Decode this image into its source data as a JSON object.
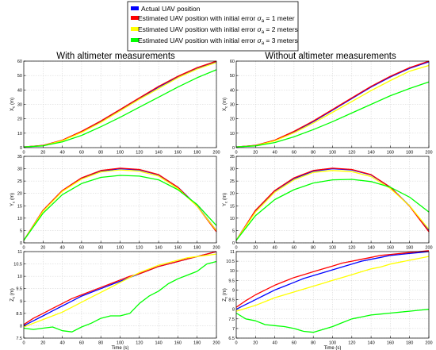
{
  "legend": {
    "entries": [
      {
        "prefix": "Actual UAV position",
        "sigma": "",
        "suffix": "",
        "color": "#0000ff"
      },
      {
        "prefix": "Estimated UAV position with initial error ",
        "sigma": "a",
        "suffix": " = 1 meter",
        "color": "#ff0000"
      },
      {
        "prefix": "Estimated UAV position with initial error ",
        "sigma": "a",
        "suffix": " = 2 meters",
        "color": "#ffff00"
      },
      {
        "prefix": "Estimated UAV position with initial error ",
        "sigma": "a",
        "suffix": " = 3 meters",
        "color": "#00ff00"
      }
    ]
  },
  "columns": [
    {
      "title": "With altimeter measurements"
    },
    {
      "title": "Without altimeter measurements"
    }
  ],
  "chart_data": [
    {
      "type": "line",
      "col": 0,
      "row": 0,
      "ylabel": "X_c (m)",
      "xlabel": "",
      "xlim": [
        0,
        200
      ],
      "ylim": [
        0,
        60
      ],
      "xticks": [
        0,
        20,
        40,
        60,
        80,
        100,
        120,
        140,
        160,
        180,
        200
      ],
      "yticks": [
        0,
        10,
        20,
        30,
        40,
        50,
        60
      ],
      "grid": true,
      "x": [
        0,
        20,
        40,
        60,
        80,
        100,
        120,
        140,
        160,
        180,
        200
      ],
      "series": [
        {
          "color": "#0000ff",
          "values": [
            0.5,
            1.5,
            5,
            11,
            18,
            26,
            34,
            42,
            49,
            55,
            59.5
          ]
        },
        {
          "color": "#ff0000",
          "values": [
            0.5,
            1.6,
            5.2,
            11.3,
            18.5,
            26.5,
            34.5,
            42.5,
            49.5,
            55.5,
            60
          ]
        },
        {
          "color": "#ffff00",
          "values": [
            0.5,
            1.4,
            4.8,
            10.5,
            17.5,
            25.5,
            33.5,
            41,
            48.5,
            54.5,
            59
          ]
        },
        {
          "color": "#00ff00",
          "values": [
            0.5,
            1.2,
            4,
            8.5,
            14.5,
            21,
            28,
            35,
            42,
            48.5,
            54
          ]
        }
      ]
    },
    {
      "type": "line",
      "col": 1,
      "row": 0,
      "ylabel": "X_c (m)",
      "xlabel": "",
      "xlim": [
        0,
        200
      ],
      "ylim": [
        0,
        60
      ],
      "xticks": [
        0,
        20,
        40,
        60,
        80,
        100,
        120,
        140,
        160,
        180,
        200
      ],
      "yticks": [
        0,
        10,
        20,
        30,
        40,
        50,
        60
      ],
      "grid": true,
      "x": [
        0,
        20,
        40,
        60,
        80,
        100,
        120,
        140,
        160,
        180,
        200
      ],
      "series": [
        {
          "color": "#0000ff",
          "values": [
            0.5,
            1.5,
            5,
            11,
            18,
            26,
            34,
            42,
            49,
            55,
            59.5
          ]
        },
        {
          "color": "#ff0000",
          "values": [
            0.5,
            1.6,
            5.2,
            11.3,
            18.5,
            26.5,
            34.5,
            42.5,
            49.5,
            55.5,
            60
          ]
        },
        {
          "color": "#ffff00",
          "values": [
            0.5,
            1.4,
            4.7,
            10.3,
            17,
            24.5,
            32,
            39.5,
            46.5,
            53,
            57
          ]
        },
        {
          "color": "#00ff00",
          "values": [
            0.5,
            1.2,
            3.5,
            7.5,
            12.5,
            18,
            24,
            30,
            36,
            41,
            45.5
          ]
        }
      ]
    },
    {
      "type": "line",
      "col": 0,
      "row": 1,
      "ylabel": "Y_c (m)",
      "xlabel": "",
      "xlim": [
        0,
        200
      ],
      "ylim": [
        0,
        35
      ],
      "xticks": [
        0,
        20,
        40,
        60,
        80,
        100,
        120,
        140,
        160,
        180,
        200
      ],
      "yticks": [
        0,
        5,
        10,
        15,
        20,
        25,
        30,
        35
      ],
      "grid": true,
      "x": [
        0,
        20,
        40,
        60,
        80,
        100,
        120,
        140,
        160,
        180,
        200
      ],
      "series": [
        {
          "color": "#0000ff",
          "values": [
            1,
            13,
            21,
            26,
            29,
            30,
            29.5,
            27.5,
            22.5,
            15,
            5
          ]
        },
        {
          "color": "#ff0000",
          "values": [
            1,
            13.2,
            21.2,
            26.3,
            29.3,
            30.2,
            29.7,
            27.6,
            22.5,
            14.8,
            4.5
          ]
        },
        {
          "color": "#ffff00",
          "values": [
            1,
            12.8,
            20.8,
            25.8,
            28.7,
            29.5,
            29,
            27,
            22,
            14.8,
            5
          ]
        },
        {
          "color": "#00ff00",
          "values": [
            1,
            12,
            19.5,
            24,
            26.5,
            27.3,
            27,
            25.5,
            21.5,
            15.5,
            7
          ]
        }
      ]
    },
    {
      "type": "line",
      "col": 1,
      "row": 1,
      "ylabel": "Y_c (m)",
      "xlabel": "",
      "xlim": [
        0,
        200
      ],
      "ylim": [
        0,
        35
      ],
      "xticks": [
        0,
        20,
        40,
        60,
        80,
        100,
        120,
        140,
        160,
        180,
        200
      ],
      "yticks": [
        0,
        5,
        10,
        15,
        20,
        25,
        30,
        35
      ],
      "grid": true,
      "x": [
        0,
        20,
        40,
        60,
        80,
        100,
        120,
        140,
        160,
        180,
        200
      ],
      "series": [
        {
          "color": "#0000ff",
          "values": [
            1,
            13,
            21,
            26,
            29,
            30,
            29.5,
            27.5,
            22.5,
            15,
            5
          ]
        },
        {
          "color": "#ff0000",
          "values": [
            1,
            13.2,
            21.2,
            26.3,
            29.3,
            30.2,
            29.7,
            27.6,
            22.5,
            14.8,
            4.5
          ]
        },
        {
          "color": "#ffff00",
          "values": [
            1,
            12.5,
            20.5,
            25.5,
            28.5,
            29.3,
            28.8,
            26.8,
            22,
            15,
            5.5
          ]
        },
        {
          "color": "#00ff00",
          "values": [
            1,
            11,
            17.5,
            21.5,
            24.2,
            25.5,
            25.7,
            24.8,
            22.5,
            18.5,
            12.5
          ]
        }
      ]
    },
    {
      "type": "line",
      "col": 0,
      "row": 2,
      "ylabel": "Z_c (m)",
      "xlabel": "Time (s)",
      "xlim": [
        0,
        200
      ],
      "ylim": [
        7.5,
        11
      ],
      "xticks": [
        0,
        20,
        40,
        60,
        80,
        100,
        120,
        140,
        160,
        180,
        200
      ],
      "yticks": [
        7.5,
        8,
        8.5,
        9,
        9.5,
        10,
        10.5,
        11
      ],
      "grid": true,
      "x": [
        0,
        10,
        20,
        30,
        40,
        50,
        60,
        70,
        80,
        90,
        100,
        110,
        120,
        130,
        140,
        150,
        160,
        170,
        180,
        190,
        200
      ],
      "series": [
        {
          "color": "#0000ff",
          "values": [
            8,
            8.2,
            8.4,
            8.6,
            8.8,
            9,
            9.2,
            9.35,
            9.5,
            9.65,
            9.8,
            9.95,
            10.1,
            10.25,
            10.4,
            10.5,
            10.6,
            10.7,
            10.8,
            10.9,
            11
          ]
        },
        {
          "color": "#ff0000",
          "values": [
            8.05,
            8.3,
            8.5,
            8.7,
            8.9,
            9.1,
            9.25,
            9.4,
            9.55,
            9.7,
            9.85,
            10,
            10.1,
            10.25,
            10.4,
            10.5,
            10.6,
            10.7,
            10.8,
            10.9,
            11
          ]
        },
        {
          "color": "#ffff00",
          "values": [
            7.95,
            8.1,
            8.25,
            8.4,
            8.55,
            8.75,
            8.95,
            9.15,
            9.35,
            9.55,
            9.75,
            9.95,
            10.15,
            10.3,
            10.45,
            10.55,
            10.65,
            10.75,
            10.8,
            10.85,
            10.9
          ]
        },
        {
          "color": "#00ff00",
          "values": [
            7.9,
            7.85,
            7.9,
            7.95,
            7.8,
            7.75,
            7.95,
            8.1,
            8.3,
            8.4,
            8.4,
            8.5,
            8.9,
            9.2,
            9.4,
            9.7,
            9.9,
            10.05,
            10.2,
            10.5,
            10.6
          ]
        }
      ]
    },
    {
      "type": "line",
      "col": 1,
      "row": 2,
      "ylabel": "Z_c (m)",
      "xlabel": "Time (s)",
      "xlim": [
        0,
        200
      ],
      "ylim": [
        6.5,
        11
      ],
      "xticks": [
        0,
        20,
        40,
        60,
        80,
        100,
        120,
        140,
        160,
        180,
        200
      ],
      "yticks": [
        6.5,
        7,
        7.5,
        8,
        8.5,
        9,
        9.5,
        10,
        10.5,
        11
      ],
      "grid": true,
      "x": [
        0,
        10,
        20,
        30,
        40,
        50,
        60,
        70,
        80,
        90,
        100,
        110,
        120,
        130,
        140,
        150,
        160,
        170,
        180,
        190,
        200
      ],
      "series": [
        {
          "color": "#0000ff",
          "values": [
            8,
            8.25,
            8.5,
            8.75,
            9,
            9.2,
            9.4,
            9.6,
            9.75,
            9.9,
            10.05,
            10.2,
            10.35,
            10.5,
            10.6,
            10.7,
            10.8,
            10.85,
            10.9,
            10.95,
            11
          ]
        },
        {
          "color": "#ff0000",
          "values": [
            8.1,
            8.45,
            8.75,
            9,
            9.25,
            9.45,
            9.65,
            9.8,
            9.95,
            10.1,
            10.25,
            10.4,
            10.5,
            10.6,
            10.7,
            10.8,
            10.85,
            10.9,
            10.95,
            11,
            11.05
          ]
        },
        {
          "color": "#ffff00",
          "values": [
            7.9,
            8.05,
            8.2,
            8.4,
            8.6,
            8.75,
            8.9,
            9.05,
            9.2,
            9.35,
            9.5,
            9.65,
            9.8,
            9.95,
            10.1,
            10.2,
            10.35,
            10.45,
            10.55,
            10.65,
            10.75
          ]
        },
        {
          "color": "#00ff00",
          "values": [
            7.8,
            7.5,
            7.4,
            7.2,
            7.15,
            7.1,
            7,
            6.85,
            6.8,
            6.95,
            7.1,
            7.3,
            7.5,
            7.6,
            7.7,
            7.75,
            7.8,
            7.85,
            7.9,
            7.95,
            8
          ]
        }
      ]
    }
  ]
}
